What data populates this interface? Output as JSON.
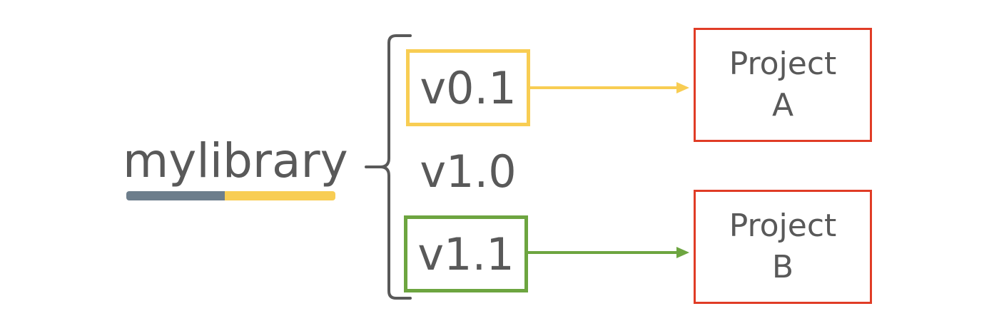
{
  "library": {
    "name": "mylibrary",
    "underline_colors": [
      "#6d7e8c",
      "#f8cd53"
    ]
  },
  "versions": [
    {
      "label": "v0.1",
      "boxed": true,
      "border_color": "#f8cd53"
    },
    {
      "label": "v1.0",
      "boxed": false
    },
    {
      "label": "v1.1",
      "boxed": true,
      "border_color": "#6da540"
    }
  ],
  "projects": [
    {
      "line1": "Project",
      "line2": "A",
      "border_color": "#e03c26"
    },
    {
      "line1": "Project",
      "line2": "B",
      "border_color": "#e03c26"
    }
  ],
  "arrows": [
    {
      "from": "v0.1",
      "to": "Project A",
      "color": "#f8cd53"
    },
    {
      "from": "v1.1",
      "to": "Project B",
      "color": "#6da540"
    }
  ],
  "colors": {
    "text": "#595959",
    "brace": "#595959"
  }
}
